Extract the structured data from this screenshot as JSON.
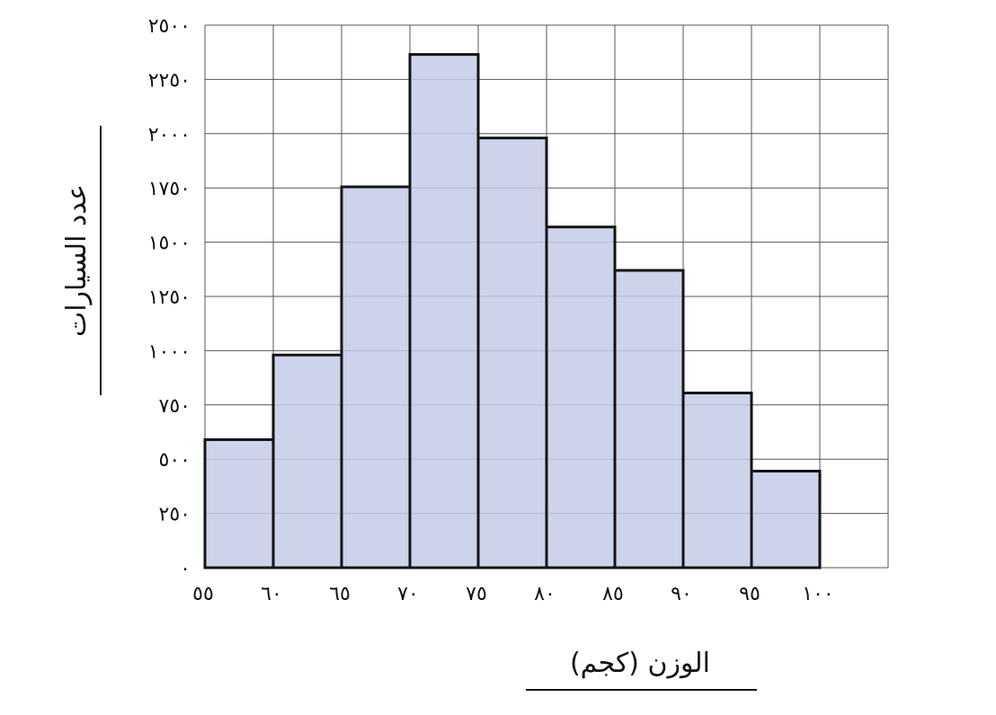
{
  "chart_data": {
    "type": "bar",
    "title": "",
    "xlabel": "الوزن (كجم)",
    "ylabel": "عدد السيارات",
    "x_ticks": [
      "٥٥",
      "٦٠",
      "٦٥",
      "٧٠",
      "٧٥",
      "٨٠",
      "٨٥",
      "٩٠",
      "٩٥",
      "١٠٠"
    ],
    "x_tick_values": [
      55,
      60,
      65,
      70,
      75,
      80,
      85,
      90,
      95,
      100
    ],
    "y_ticks": [
      "٠",
      "٢٥٠",
      "٥٠٠",
      "٧٥٠",
      "١٠٠٠",
      "١٢٥٠",
      "١٥٠٠",
      "١٧٥٠",
      "٢٠٠٠",
      "٢٢٥٠",
      "٢٥٠٠"
    ],
    "y_tick_values": [
      0,
      250,
      500,
      750,
      1000,
      1250,
      1500,
      1750,
      2000,
      2250,
      2500
    ],
    "bins": [
      {
        "from": 55,
        "to": 60,
        "value": 590
      },
      {
        "from": 60,
        "to": 65,
        "value": 980
      },
      {
        "from": 65,
        "to": 70,
        "value": 1755
      },
      {
        "from": 70,
        "to": 75,
        "value": 2365
      },
      {
        "from": 75,
        "to": 80,
        "value": 1980
      },
      {
        "from": 80,
        "to": 85,
        "value": 1570
      },
      {
        "from": 85,
        "to": 90,
        "value": 1370
      },
      {
        "from": 90,
        "to": 95,
        "value": 805
      },
      {
        "from": 95,
        "to": 100,
        "value": 445
      }
    ],
    "xlim": [
      55,
      105
    ],
    "ylim": [
      0,
      2500
    ],
    "grid": true,
    "bar_fill": "#c4cbe6",
    "bar_stroke": "#141414",
    "grid_color": "#555555"
  }
}
